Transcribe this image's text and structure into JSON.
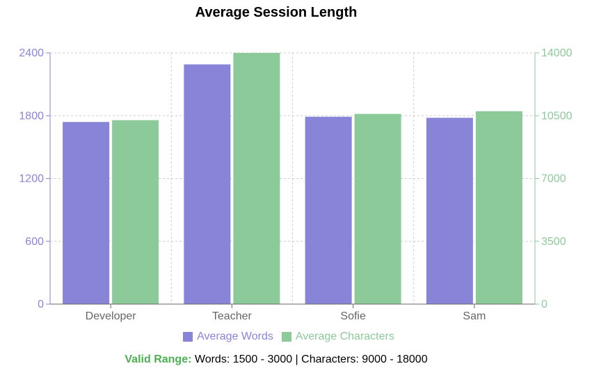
{
  "chart_data": {
    "type": "bar",
    "title": "Average Session Length",
    "categories": [
      "Developer",
      "Teacher",
      "Sofie",
      "Sam"
    ],
    "series": [
      {
        "name": "Average Words",
        "axis": "left",
        "color": "#8884d8",
        "values": [
          1740,
          2290,
          1790,
          1780
        ]
      },
      {
        "name": "Average Characters",
        "axis": "right",
        "color": "#8dca9a",
        "values": [
          10250,
          14000,
          10600,
          10750
        ]
      }
    ],
    "left_axis": {
      "ylim": [
        0,
        2400
      ],
      "ticks": [
        "0",
        "600",
        "1200",
        "1800",
        "2400"
      ],
      "color": "#8884d8"
    },
    "right_axis": {
      "ylim": [
        0,
        14000
      ],
      "ticks": [
        "0",
        "3500",
        "7000",
        "10500",
        "14000"
      ],
      "color": "#8dca9a"
    },
    "grid": true,
    "legend_position": "bottom"
  },
  "footnote": {
    "label": "Valid Range:",
    "text": "Words: 1500 - 3000 | Characters: 9000 - 18000"
  }
}
